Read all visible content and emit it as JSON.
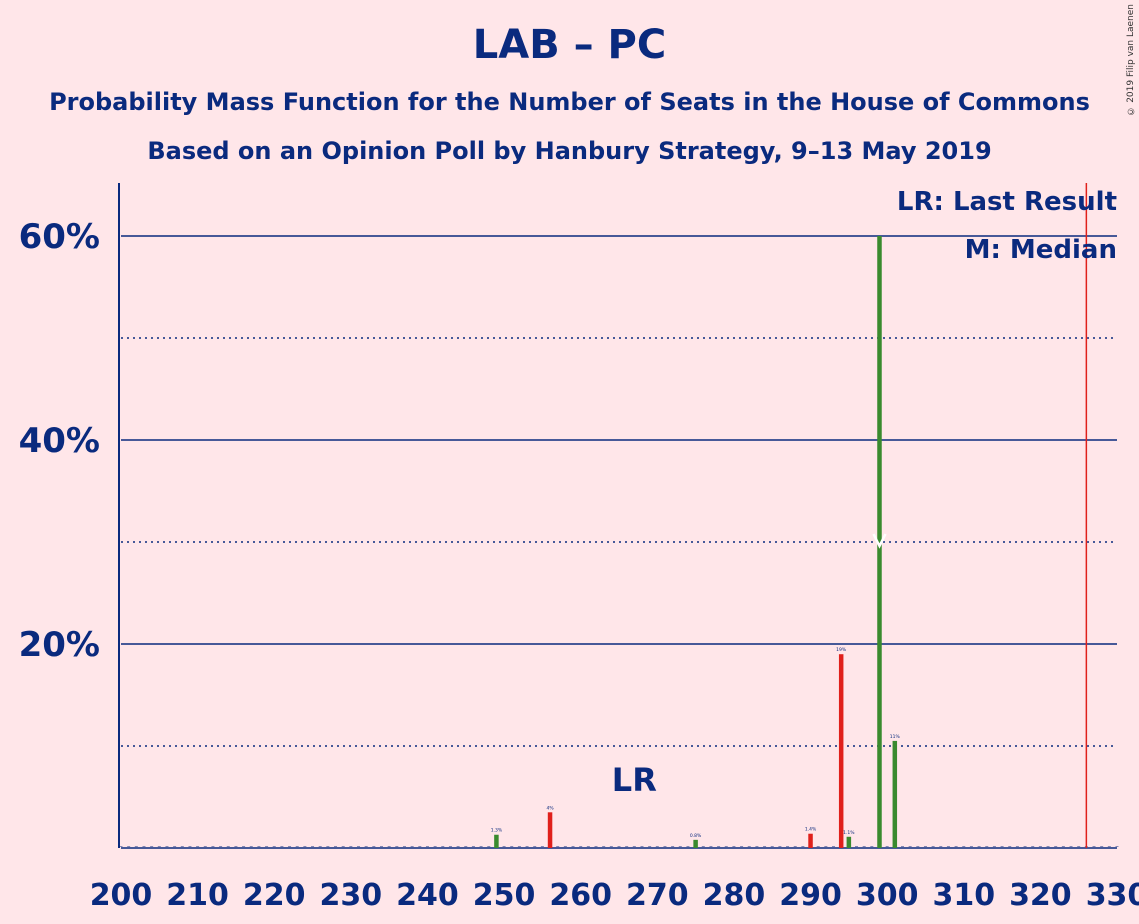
{
  "chart_data": {
    "type": "bar",
    "title": "LAB – PC",
    "subtitle_1": "Probability Mass Function for the Number of Seats in the House of Commons",
    "subtitle_2": "Based on an Opinion Poll by Hanbury Strategy, 9–13 May 2019",
    "copyright": "© 2019 Filip van Laenen",
    "xlim": [
      200,
      330
    ],
    "ylim": [
      0,
      65
    ],
    "x_ticks": [
      200,
      210,
      220,
      230,
      240,
      250,
      260,
      270,
      280,
      290,
      300,
      310,
      320,
      330
    ],
    "y_ticks_major": [
      20,
      40,
      60
    ],
    "y_tick_labels": [
      "20%",
      "40%",
      "60%"
    ],
    "y_ticks_minor": [
      10,
      30,
      50
    ],
    "legend": {
      "lr": "LR: Last Result",
      "m": "M: Median"
    },
    "lr_label": "LR",
    "lr_label_x": 267,
    "last_result_line_x": 326,
    "median_x": 299,
    "colors": {
      "red": "#E0201B",
      "green": "#3A8A2E",
      "axis": "#0A2A7E",
      "background": "#FFE6E9",
      "lr_line": "#E0201B"
    },
    "bars": [
      {
        "seat": 249,
        "value": 1.3,
        "label": "1.3%",
        "color": "green"
      },
      {
        "seat": 256,
        "value": 3.5,
        "label": "4%",
        "color": "red"
      },
      {
        "seat": 275,
        "value": 0.8,
        "label": "0.8%",
        "color": "green"
      },
      {
        "seat": 290,
        "value": 1.4,
        "label": "1.4%",
        "color": "red"
      },
      {
        "seat": 294,
        "value": 19,
        "label": "19%",
        "color": "red"
      },
      {
        "seat": 295,
        "value": 1.1,
        "label": "1.1%",
        "color": "green"
      },
      {
        "seat": 299,
        "value": 60,
        "label": "",
        "color": "green"
      },
      {
        "seat": 301,
        "value": 10.5,
        "label": "11%",
        "color": "green"
      }
    ]
  }
}
